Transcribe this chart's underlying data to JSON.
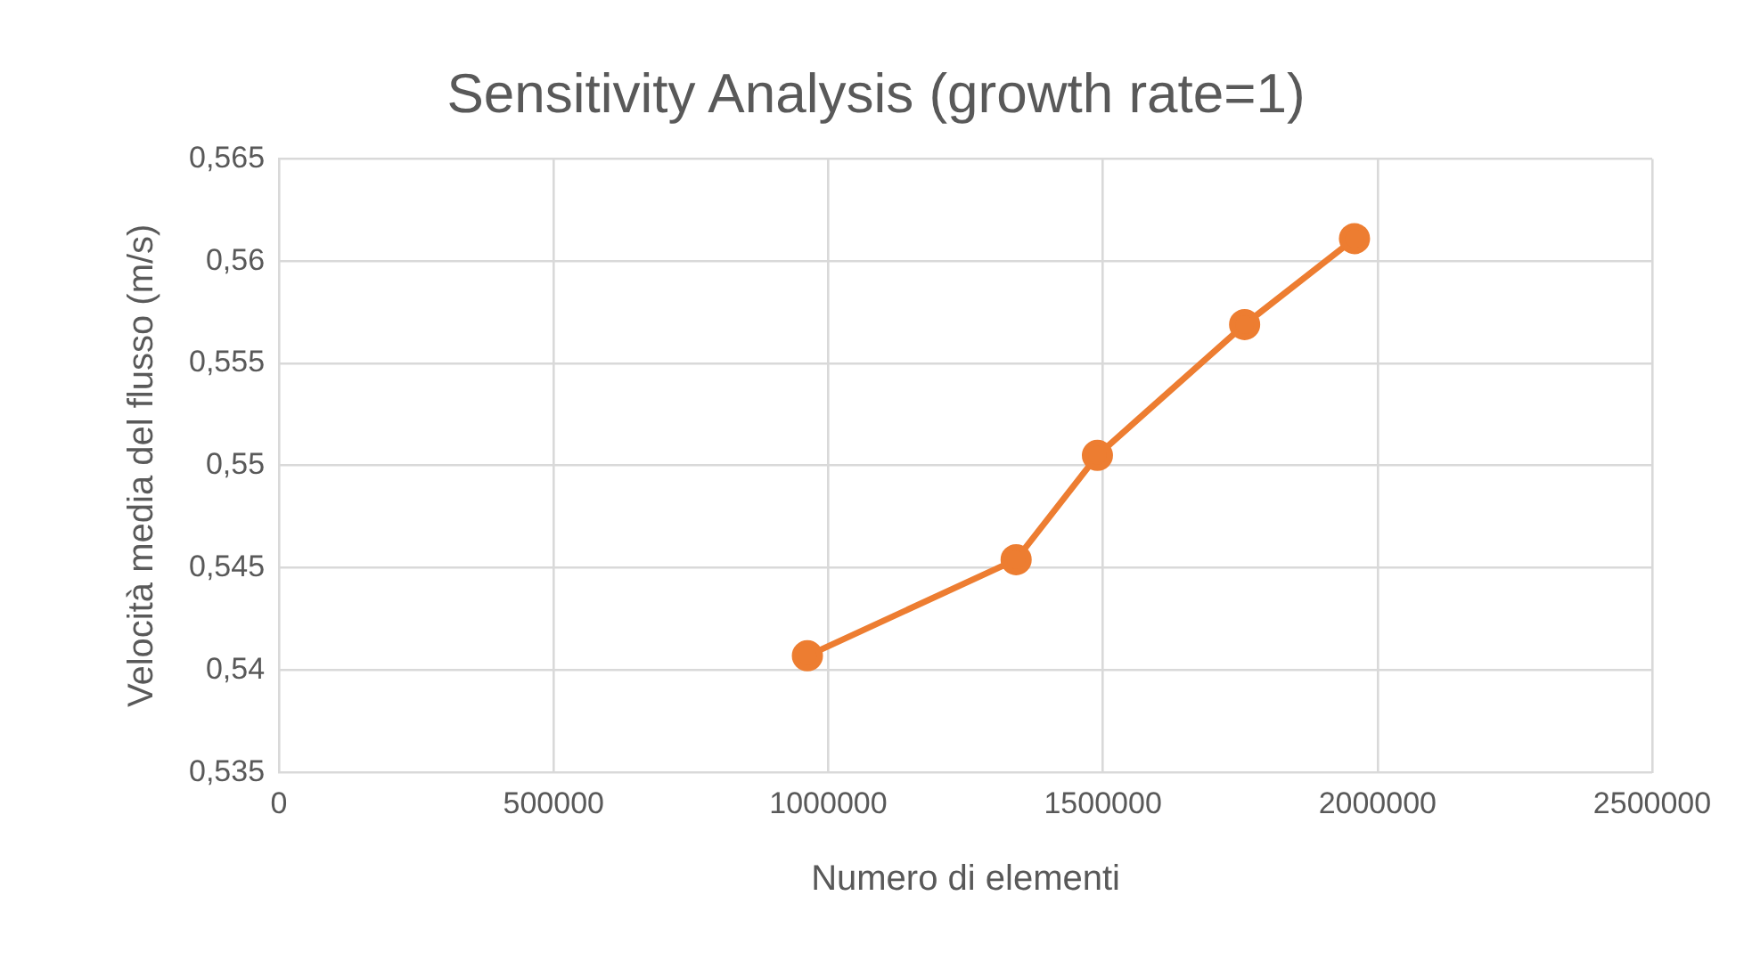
{
  "chart_data": {
    "type": "scatter",
    "title": "Sensitivity Analysis (growth rate=1)",
    "xlabel": "Numero di elementi",
    "ylabel": "Velocità media del flusso (m/s)",
    "series": [
      {
        "type": "line",
        "color": "#ed7d31",
        "x": [
          962000,
          1342000,
          1490000,
          1758000,
          1958000
        ],
        "values": [
          0.5407,
          0.5454,
          0.5505,
          0.5569,
          0.5611
        ]
      }
    ],
    "xlim": [
      0,
      2500000
    ],
    "xticks": [
      0,
      500000,
      1000000,
      1500000,
      2000000,
      2500000
    ],
    "ylim": [
      0.535,
      0.565
    ],
    "yticks": [
      {
        "value": 0.535,
        "label": "0,535"
      },
      {
        "value": 0.54,
        "label": "0,54"
      },
      {
        "value": 0.545,
        "label": "0,545"
      },
      {
        "value": 0.55,
        "label": "0,55"
      },
      {
        "value": 0.555,
        "label": "0,555"
      },
      {
        "value": 0.56,
        "label": "0,56"
      },
      {
        "value": 0.565,
        "label": "0,565"
      }
    ],
    "grid": true,
    "marker": "circle",
    "line_style": "solid",
    "legend": false
  }
}
